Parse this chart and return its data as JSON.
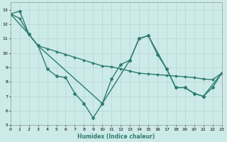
{
  "xlabel": "Humidex (Indice chaleur)",
  "bg_color": "#cceae8",
  "line_color": "#2d7d6f",
  "grid_color": "#b8d8d5",
  "xlim": [
    0,
    23
  ],
  "ylim": [
    5,
    13.5
  ],
  "yticks": [
    5,
    6,
    7,
    8,
    9,
    10,
    11,
    12,
    13
  ],
  "xticks": [
    0,
    1,
    2,
    3,
    4,
    5,
    6,
    7,
    8,
    9,
    10,
    11,
    12,
    13,
    14,
    15,
    16,
    17,
    18,
    19,
    20,
    21,
    22,
    23
  ],
  "series": [
    {
      "x": [
        0,
        1,
        2,
        3,
        4,
        5,
        6,
        7,
        8,
        9,
        10,
        11,
        12,
        13,
        14,
        15,
        16,
        17,
        18,
        19,
        20,
        21,
        22,
        23
      ],
      "y": [
        12.7,
        12.9,
        11.3,
        10.5,
        8.9,
        8.4,
        8.3,
        7.2,
        6.5,
        5.5,
        6.5,
        8.2,
        9.2,
        9.5,
        11.0,
        11.2,
        9.9,
        8.9,
        7.6,
        7.6,
        7.2,
        7.0,
        7.6,
        8.6
      ],
      "linestyle": "-",
      "linewidth": 1.0,
      "marker": "D",
      "markersize": 2.0
    },
    {
      "x": [
        0,
        1,
        2,
        3,
        4,
        5,
        6,
        7,
        8,
        9,
        10,
        11,
        12,
        13,
        14,
        15,
        16,
        17,
        18,
        19,
        20,
        21,
        22,
        23
      ],
      "y": [
        12.7,
        12.4,
        11.3,
        10.5,
        10.3,
        10.1,
        9.9,
        9.7,
        9.5,
        9.3,
        9.1,
        9.05,
        8.9,
        8.75,
        8.6,
        8.55,
        8.5,
        8.45,
        8.4,
        8.35,
        8.3,
        8.2,
        8.15,
        8.6
      ],
      "linestyle": "-",
      "linewidth": 1.0,
      "marker": "D",
      "markersize": 1.5
    },
    {
      "x": [
        0,
        2,
        3,
        10,
        13,
        14,
        15,
        17,
        18,
        19,
        20,
        21,
        23
      ],
      "y": [
        12.7,
        11.3,
        10.5,
        6.5,
        9.5,
        11.0,
        11.2,
        8.9,
        7.6,
        7.6,
        7.2,
        7.0,
        8.6
      ],
      "linestyle": "-",
      "linewidth": 1.0,
      "marker": "D",
      "markersize": 2.0
    }
  ]
}
